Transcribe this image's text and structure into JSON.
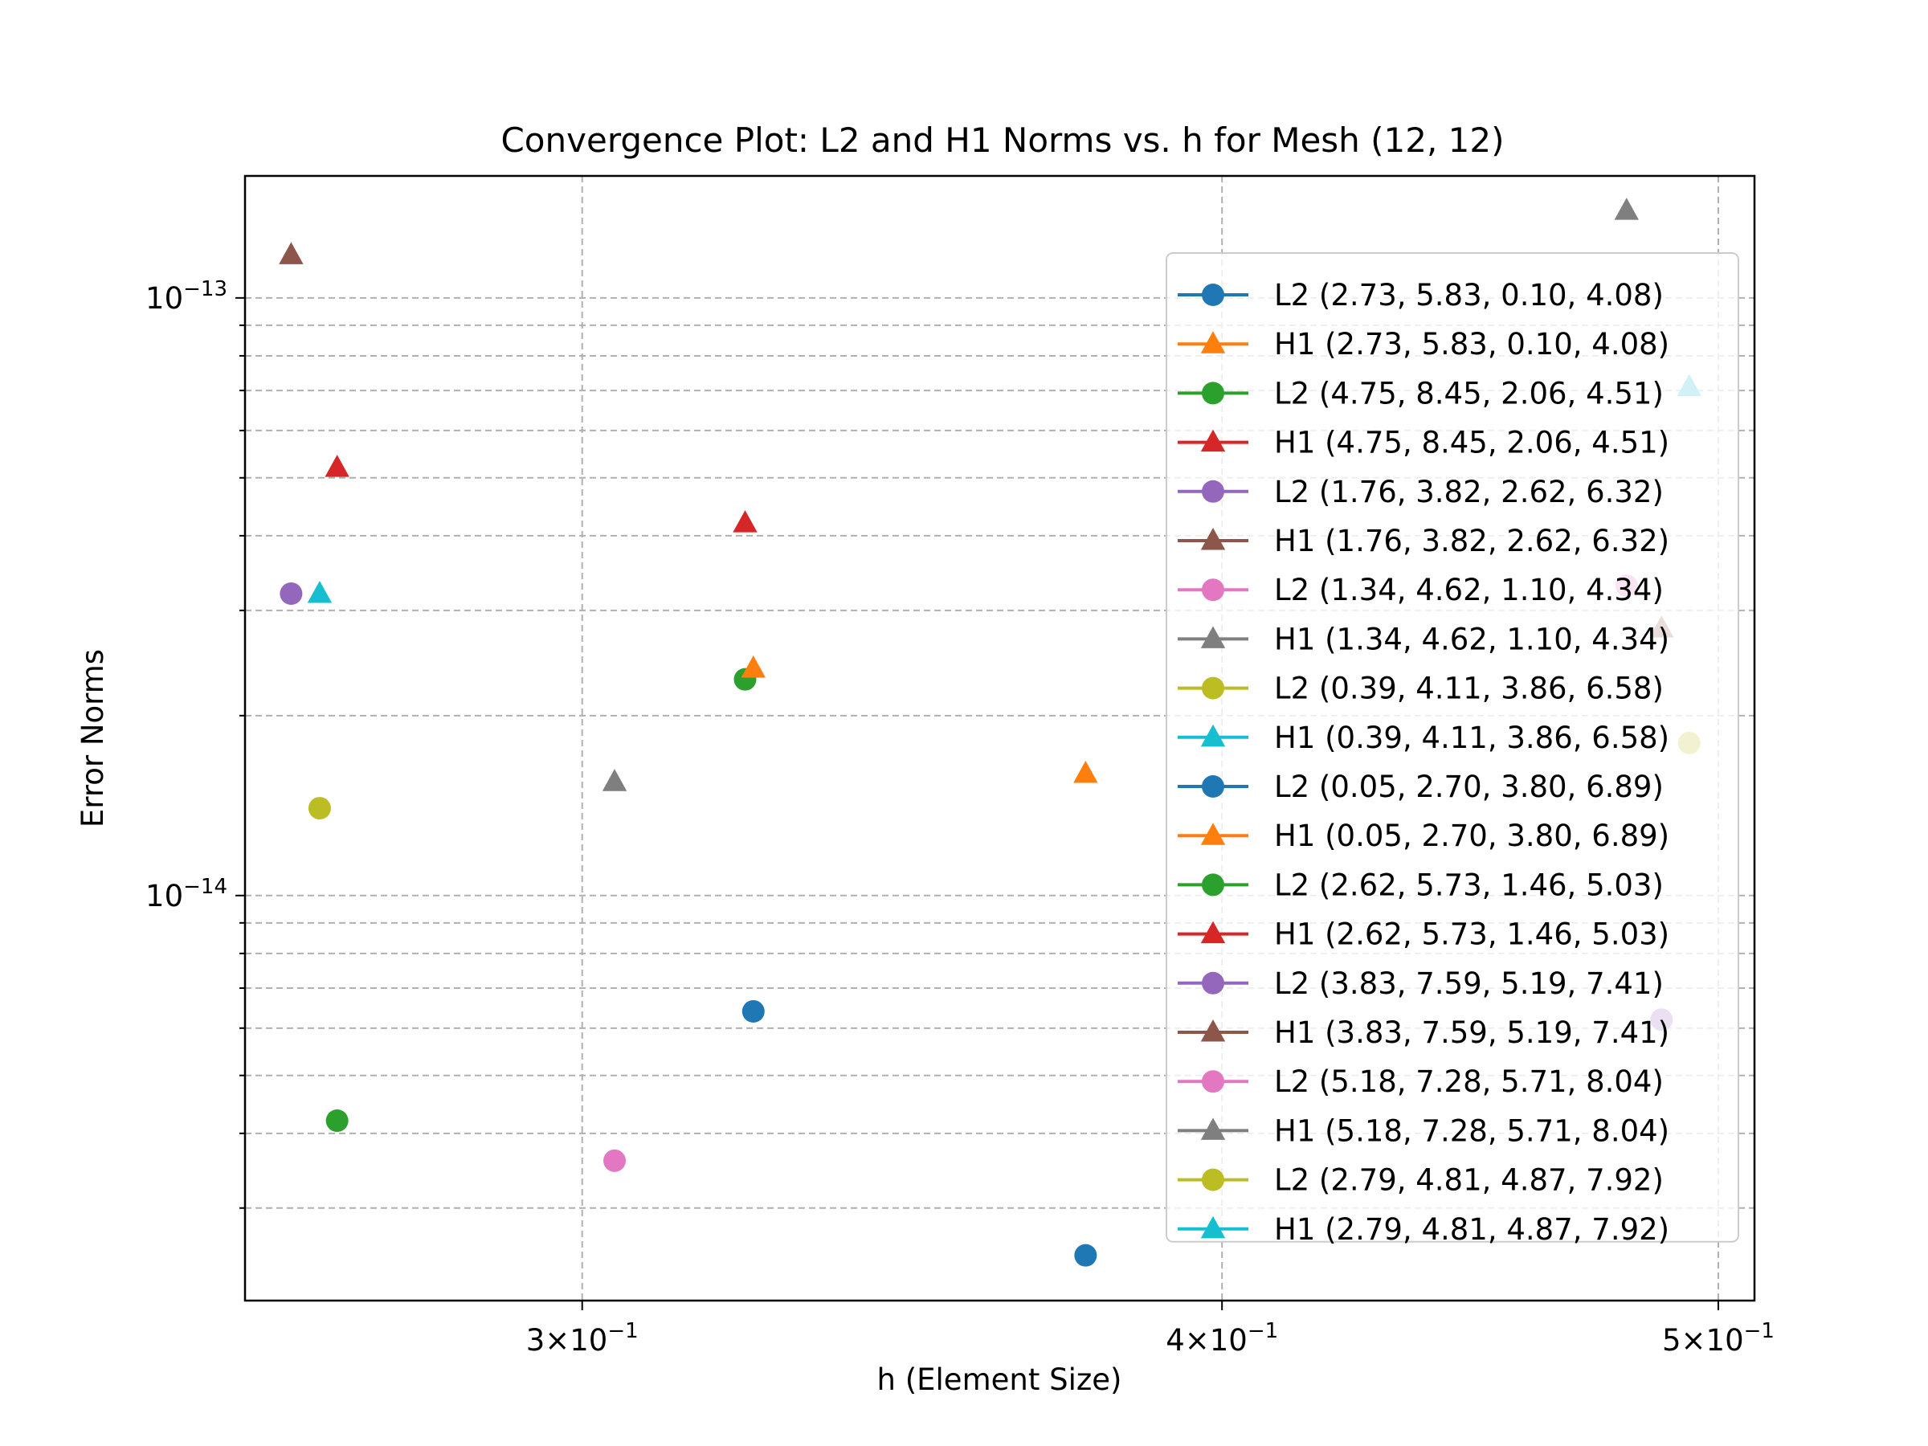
{
  "chart_data": {
    "type": "scatter",
    "title": "Convergence Plot: L2 and H1 Norms vs. h for Mesh (12, 12)",
    "xlabel": "h (Element Size)",
    "ylabel": "Error Norms",
    "xscale": "log",
    "yscale": "log",
    "xlim": [
      0.2578,
      0.5082
    ],
    "ylim": [
      2.1e-15,
      1.6e-13
    ],
    "grid": true,
    "legend_position": "right",
    "x_ticks": [
      {
        "base": "3",
        "mantissa": "10",
        "exp": "−1",
        "value": 0.3
      },
      {
        "base": "4",
        "mantissa": "10",
        "exp": "−1",
        "value": 0.4
      },
      {
        "base": "5",
        "mantissa": "10",
        "exp": "−1",
        "value": 0.5
      }
    ],
    "y_ticks": [
      {
        "mantissa": "10",
        "exp": "−13",
        "value": 1e-13
      },
      {
        "mantissa": "10",
        "exp": "−14",
        "value": 1e-14
      }
    ],
    "series": [
      {
        "name": "L2 (2.73, 5.83, 0.10, 4.08)",
        "marker": "circle",
        "color": "#1f77b4",
        "x": 0.3762,
        "y": 2.5e-15
      },
      {
        "name": "H1 (2.73, 5.83, 0.10, 4.08)",
        "marker": "triangle",
        "color": "#ff7f0e",
        "x": 0.3762,
        "y": 1.6e-14
      },
      {
        "name": "L2 (4.75, 8.45, 2.06, 4.51)",
        "marker": "circle",
        "color": "#2ca02c",
        "x": 0.3228,
        "y": 2.3e-14
      },
      {
        "name": "H1 (4.75, 8.45, 2.06, 4.51)",
        "marker": "triangle",
        "color": "#d62728",
        "x": 0.3228,
        "y": 4.2e-14
      },
      {
        "name": "L2 (1.76, 3.82, 2.62, 6.32)",
        "marker": "circle",
        "color": "#9467bd",
        "x": 0.2632,
        "y": 3.2e-14
      },
      {
        "name": "H1 (1.76, 3.82, 2.62, 6.32)",
        "marker": "triangle",
        "color": "#8c564b",
        "x": 0.2632,
        "y": 1.18e-13
      },
      {
        "name": "L2 (1.34, 4.62, 1.10, 4.34)",
        "marker": "circle",
        "color": "#e377c2",
        "x": 0.3044,
        "y": 3.6e-15
      },
      {
        "name": "H1 (1.34, 4.62, 1.10, 4.34)",
        "marker": "triangle",
        "color": "#7f7f7f",
        "x": 0.3044,
        "y": 1.55e-14
      },
      {
        "name": "L2 (0.39, 4.11, 3.86, 6.58)",
        "marker": "circle",
        "color": "#bcbd22",
        "x": 0.2666,
        "y": 1.4e-14
      },
      {
        "name": "H1 (0.39, 4.11, 3.86, 6.58)",
        "marker": "triangle",
        "color": "#17becf",
        "x": 0.2666,
        "y": 3.2e-14
      },
      {
        "name": "L2 (0.05, 2.70, 3.80, 6.89)",
        "marker": "circle",
        "color": "#1f77b4",
        "x": 0.324,
        "y": 6.4e-15
      },
      {
        "name": "H1 (0.05, 2.70, 3.80, 6.89)",
        "marker": "triangle",
        "color": "#ff7f0e",
        "x": 0.324,
        "y": 2.4e-14
      },
      {
        "name": "L2 (2.62, 5.73, 1.46, 5.03)",
        "marker": "circle",
        "color": "#2ca02c",
        "x": 0.2687,
        "y": 4.2e-15
      },
      {
        "name": "H1 (2.62, 5.73, 1.46, 5.03)",
        "marker": "triangle",
        "color": "#d62728",
        "x": 0.2687,
        "y": 5.2e-14
      },
      {
        "name": "L2 (3.83, 7.59, 5.19, 7.41)",
        "marker": "circle",
        "color": "#9467bd",
        "x": 0.4874,
        "y": 6.2e-15
      },
      {
        "name": "H1 (3.83, 7.59, 5.19, 7.41)",
        "marker": "triangle",
        "color": "#8c564b",
        "x": 0.4874,
        "y": 2.8e-14
      },
      {
        "name": "L2 (5.18, 7.28, 5.71, 8.04)",
        "marker": "circle",
        "color": "#e377c2",
        "x": 0.4798,
        "y": 3.3e-14
      },
      {
        "name": "H1 (5.18, 7.28, 5.71, 8.04)",
        "marker": "triangle",
        "color": "#7f7f7f",
        "x": 0.4798,
        "y": 1.4e-13
      },
      {
        "name": "L2 (2.79, 4.81, 4.87, 7.92)",
        "marker": "circle",
        "color": "#bcbd22",
        "x": 0.4935,
        "y": 1.8e-14
      },
      {
        "name": "H1 (2.79, 4.81, 4.87, 7.92)",
        "marker": "triangle",
        "color": "#17becf",
        "x": 0.4935,
        "y": 7.1e-14
      }
    ]
  }
}
